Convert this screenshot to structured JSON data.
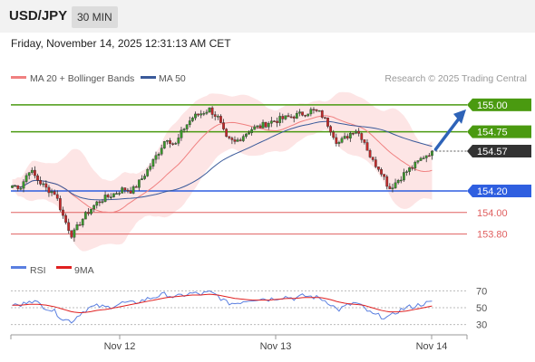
{
  "header": {
    "symbol": "USD/JPY",
    "timeframe": "30 MIN"
  },
  "datetime": "Friday, November 14, 2025 12:31:13 AM CET",
  "legend": {
    "ma20_label": "MA 20 + Bollinger Bands",
    "ma50_label": "MA 50",
    "credit": "Research © 2025 Trading Central"
  },
  "rsi_legend": {
    "rsi_label": "RSI",
    "ma_label": "9MA"
  },
  "colors": {
    "green": "#4a9a10",
    "blue": "#2f5fe0",
    "red": "#e06060",
    "dark": "#333333",
    "ma20": "#f08080",
    "ma50": "#3a5a9a",
    "band": "#fde0e0",
    "rsi": "#5a7fe0",
    "rsi_ma": "#e02020"
  },
  "chart_data": [
    {
      "type": "candlestick",
      "ylim": [
        153.62,
        155.15
      ],
      "x_ticks": [
        "Nov 12",
        "Nov 13",
        "Nov 14"
      ],
      "current_price": 154.57,
      "levels": [
        {
          "value": 155.0,
          "label": "155.00",
          "style": "resistance-filled",
          "color": "#4a9a10"
        },
        {
          "value": 154.75,
          "label": "154.75",
          "style": "resistance-filled",
          "color": "#4a9a10"
        },
        {
          "value": 154.2,
          "label": "154.20",
          "style": "pivot-filled",
          "color": "#2f5fe0"
        },
        {
          "value": 154.0,
          "label": "154.00",
          "style": "support-text",
          "color": "#e06060"
        },
        {
          "value": 153.8,
          "label": "153.80",
          "style": "support-text",
          "color": "#e06060"
        }
      ],
      "price_path": [
        154.25,
        154.24,
        154.4,
        154.3,
        154.22,
        154.18,
        153.95,
        153.78,
        153.92,
        154.02,
        154.1,
        154.14,
        154.18,
        154.22,
        154.2,
        154.3,
        154.42,
        154.55,
        154.7,
        154.62,
        154.78,
        154.88,
        154.92,
        154.96,
        154.88,
        154.68,
        154.65,
        154.72,
        154.78,
        154.8,
        154.84,
        154.86,
        154.88,
        154.9,
        154.92,
        154.95,
        154.92,
        154.8,
        154.64,
        154.7,
        154.78,
        154.68,
        154.48,
        154.4,
        154.22,
        154.3,
        154.38,
        154.44,
        154.52,
        154.57
      ]
    },
    {
      "type": "line",
      "name": "RSI",
      "ylim": [
        20,
        80
      ],
      "y_ticks": [
        70,
        50,
        30
      ],
      "values": [
        54,
        52,
        60,
        55,
        50,
        45,
        36,
        34,
        44,
        50,
        52,
        50,
        53,
        56,
        55,
        58,
        61,
        64,
        66,
        62,
        65,
        67,
        66,
        68,
        64,
        56,
        55,
        58,
        60,
        61,
        60,
        62,
        63,
        61,
        64,
        63,
        61,
        56,
        47,
        52,
        56,
        50,
        42,
        40,
        38,
        46,
        50,
        52,
        55,
        56
      ],
      "ma_values": [
        53,
        53,
        54,
        54,
        53,
        51,
        48,
        45,
        44,
        45,
        47,
        48,
        50,
        52,
        54,
        56,
        58,
        60,
        62,
        63,
        64,
        65,
        65,
        66,
        65,
        63,
        61,
        60,
        59,
        59,
        59,
        60,
        61,
        61,
        62,
        62,
        62,
        60,
        57,
        55,
        54,
        53,
        50,
        47,
        45,
        45,
        46,
        48,
        50,
        52
      ]
    }
  ]
}
